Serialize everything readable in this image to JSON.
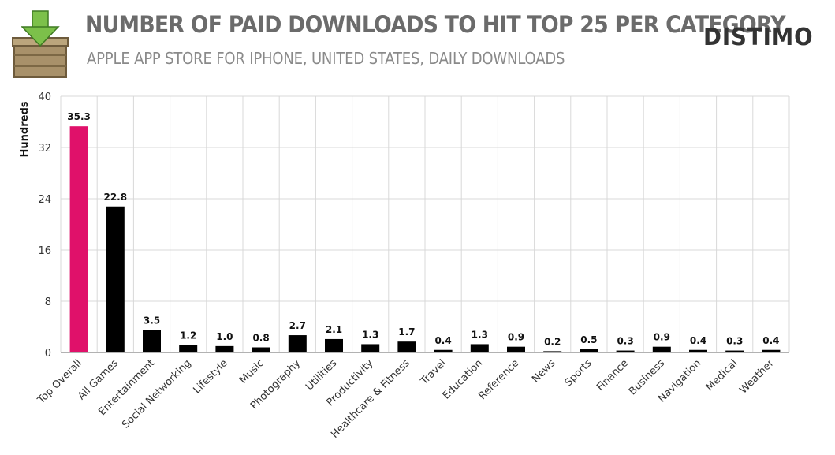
{
  "header": {
    "title": "NUMBER OF PAID DOWNLOADS TO HIT TOP 25 PER CATEGORY",
    "subtitle": "APPLE APP STORE FOR IPHONE, UNITED STATES, DAILY DOWNLOADS",
    "brand": "DISTIMO",
    "logo_icon": "download-crate-icon"
  },
  "colors": {
    "highlight": "#e0116a",
    "bar": "#000000",
    "grid": "#d8d8d8",
    "axis_text": "#333333"
  },
  "chart_data": {
    "type": "bar",
    "title": "NUMBER OF PAID DOWNLOADS TO HIT TOP 25 PER CATEGORY",
    "subtitle": "APPLE APP STORE FOR IPHONE, UNITED STATES, DAILY DOWNLOADS",
    "xlabel": "",
    "ylabel": "Hundreds",
    "ylim": [
      0,
      40
    ],
    "yticks": [
      0,
      8,
      16,
      24,
      32,
      40
    ],
    "grid": true,
    "categories": [
      "Top Overall",
      "All Games",
      "Entertainment",
      "Social Networking",
      "Lifestyle",
      "Music",
      "Photography",
      "Utilities",
      "Productivity",
      "Healthcare & Fitness",
      "Travel",
      "Education",
      "Reference",
      "News",
      "Sports",
      "Finance",
      "Business",
      "Navigation",
      "Medical",
      "Weather"
    ],
    "values": [
      35.3,
      22.8,
      3.5,
      1.2,
      1.0,
      0.8,
      2.7,
      2.1,
      1.3,
      1.7,
      0.4,
      1.3,
      0.9,
      0.2,
      0.5,
      0.3,
      0.9,
      0.4,
      0.3,
      0.4
    ],
    "data_labels": [
      "35.3",
      "22.8",
      "3.5",
      "1.2",
      "1.0",
      "0.8",
      "2.7",
      "2.1",
      "1.3",
      "1.7",
      "0.4",
      "1.3",
      "0.9",
      "0.2",
      "0.5",
      "0.3",
      "0.9",
      "0.4",
      "0.3",
      "0.4"
    ],
    "highlight_index": 0
  }
}
